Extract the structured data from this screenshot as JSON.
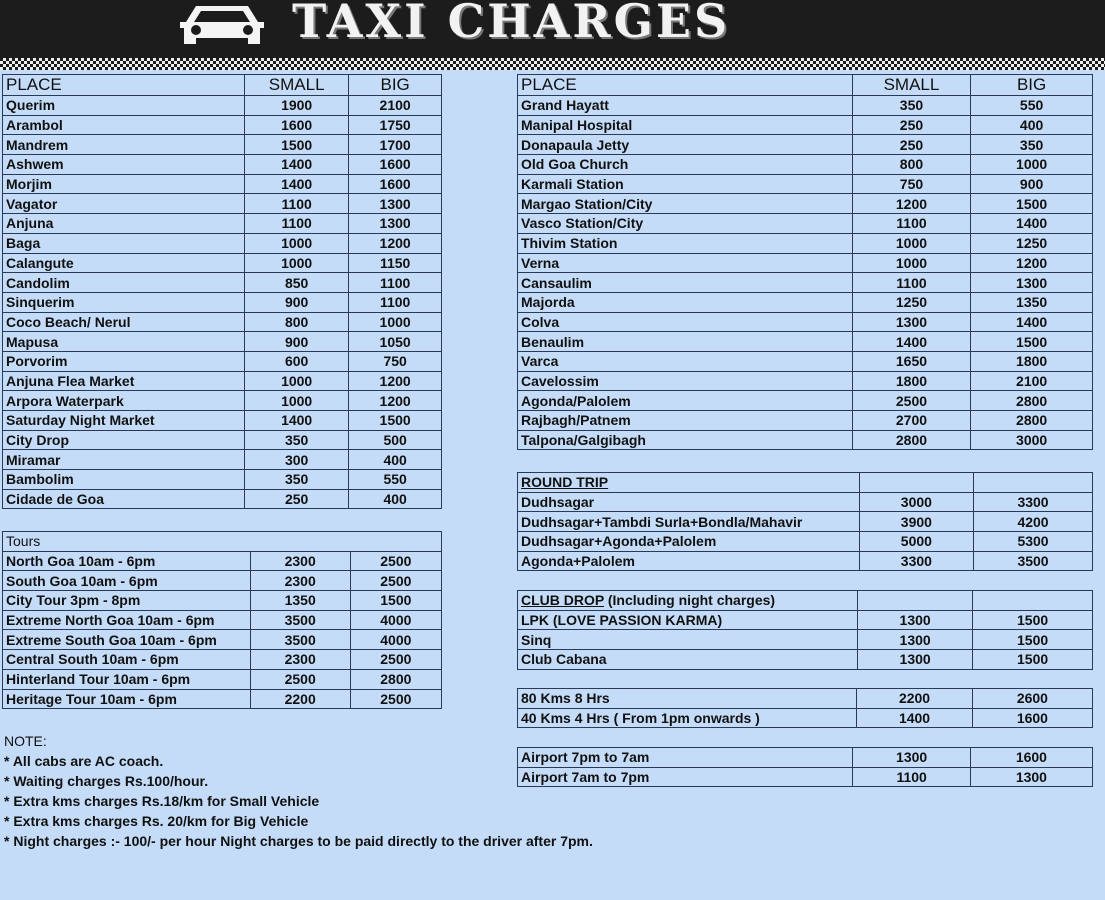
{
  "header": {
    "title": "TAXI CHARGES",
    "icon": "taxi-car-icon"
  },
  "columns": {
    "place": "PLACE",
    "small": "SMALL",
    "big": "BIG"
  },
  "left_places": [
    [
      "Querim",
      "1900",
      "2100"
    ],
    [
      "Arambol",
      "1600",
      "1750"
    ],
    [
      "Mandrem",
      "1500",
      "1700"
    ],
    [
      "Ashwem",
      "1400",
      "1600"
    ],
    [
      "Morjim",
      "1400",
      "1600"
    ],
    [
      "Vagator",
      "1100",
      "1300"
    ],
    [
      "Anjuna",
      "1100",
      "1300"
    ],
    [
      "Baga",
      "1000",
      "1200"
    ],
    [
      "Calangute",
      "1000",
      "1150"
    ],
    [
      "Candolim",
      "850",
      "1100"
    ],
    [
      "Sinquerim",
      "900",
      "1100"
    ],
    [
      "Coco Beach/ Nerul",
      "800",
      "1000"
    ],
    [
      "Mapusa",
      "900",
      "1050"
    ],
    [
      "Porvorim",
      "600",
      "750"
    ],
    [
      "Anjuna Flea Market",
      "1000",
      "1200"
    ],
    [
      "Arpora Waterpark",
      "1000",
      "1200"
    ],
    [
      "Saturday Night Market",
      "1400",
      "1500"
    ],
    [
      "City Drop",
      "350",
      "500"
    ],
    [
      "Miramar",
      "300",
      "400"
    ],
    [
      "Bambolim",
      "350",
      "550"
    ],
    [
      "Cidade de Goa",
      "250",
      "400"
    ]
  ],
  "tours": {
    "title": "Tours",
    "rows": [
      [
        "North Goa 10am - 6pm",
        "2300",
        "2500"
      ],
      [
        "South Goa  10am -  6pm",
        "2300",
        "2500"
      ],
      [
        "City Tour   3pm - 8pm",
        "1350",
        "1500"
      ],
      [
        "Extreme North Goa 10am - 6pm",
        "3500",
        "4000"
      ],
      [
        "Extreme South Goa 10am - 6pm",
        "3500",
        "4000"
      ],
      [
        "Central South 10am - 6pm",
        "2300",
        "2500"
      ],
      [
        "Hinterland Tour 10am - 6pm",
        "2500",
        "2800"
      ],
      [
        "Heritage Tour 10am - 6pm",
        "2200",
        "2500"
      ]
    ]
  },
  "right_places": [
    [
      "Grand Hayatt",
      "350",
      "550"
    ],
    [
      "Manipal Hospital",
      "250",
      "400"
    ],
    [
      "Donapaula Jetty",
      "250",
      "350"
    ],
    [
      "Old Goa Church",
      "800",
      "1000"
    ],
    [
      "Karmali Station",
      "750",
      "900"
    ],
    [
      "Margao Station/City",
      "1200",
      "1500"
    ],
    [
      "Vasco Station/City",
      "1100",
      "1400"
    ],
    [
      "Thivim Station",
      "1000",
      "1250"
    ],
    [
      "Verna",
      "1000",
      "1200"
    ],
    [
      "Cansaulim",
      "1100",
      "1300"
    ],
    [
      "Majorda",
      "1250",
      "1350"
    ],
    [
      "Colva",
      "1300",
      "1400"
    ],
    [
      "Benaulim",
      "1400",
      "1500"
    ],
    [
      "Varca",
      "1650",
      "1800"
    ],
    [
      "Cavelossim",
      "1800",
      "2100"
    ],
    [
      "Agonda/Palolem",
      "2500",
      "2800"
    ],
    [
      "Rajbagh/Patnem",
      "2700",
      "2800"
    ],
    [
      "Talpona/Galgibagh",
      "2800",
      "3000"
    ]
  ],
  "round_trip": {
    "title": "ROUND TRIP",
    "rows": [
      [
        "Dudhsagar",
        "3000",
        "3300"
      ],
      [
        "Dudhsagar+Tambdi Surla+Bondla/Mahavir",
        "3900",
        "4200"
      ],
      [
        "Dudhsagar+Agonda+Palolem",
        "5000",
        "5300"
      ],
      [
        "Agonda+Palolem",
        "3300",
        "3500"
      ]
    ]
  },
  "club_drop": {
    "title": "CLUB DROP",
    "subtitle": " (Including night charges)",
    "rows": [
      [
        "LPK (LOVE PASSION KARMA)",
        "1300",
        "1500"
      ],
      [
        "Sinq",
        "1300",
        "1500"
      ],
      [
        "Club Cabana",
        "1300",
        "1500"
      ]
    ]
  },
  "hourly": [
    [
      "80 Kms 8 Hrs",
      "2200",
      "2600"
    ],
    [
      "40 Kms 4 Hrs ( From 1pm onwards )",
      "1400",
      "1600"
    ]
  ],
  "airport": [
    [
      "Airport 7pm to 7am",
      "1300",
      "1600"
    ],
    [
      "Airport 7am to 7pm",
      "1100",
      "1300"
    ]
  ],
  "notes": {
    "title": "NOTE:",
    "items": [
      "* All cabs are AC coach.",
      "* Waiting charges Rs.100/hour.",
      "* Extra kms charges Rs.18/km for Small Vehicle",
      "* Extra kms charges Rs. 20/km for Big Vehicle",
      "* Night charges  :- 100/- per hour Night charges to be paid directly to the driver after 7pm."
    ]
  }
}
